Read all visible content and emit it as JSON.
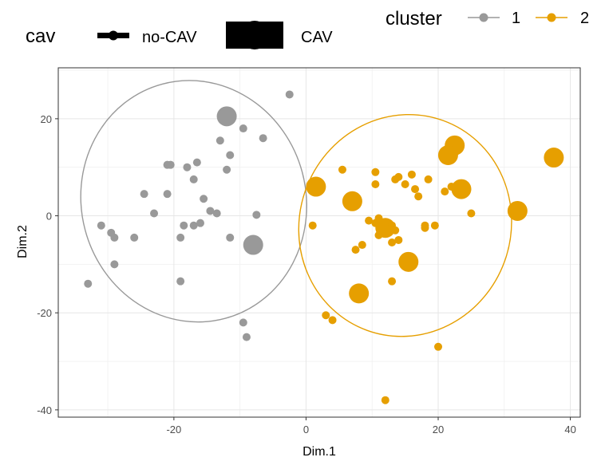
{
  "chart_data": {
    "type": "scatter",
    "title": "",
    "xlabel": "Dim.1",
    "ylabel": "Dim.2",
    "xlim": [
      -37.5,
      41.5
    ],
    "ylim": [
      -41.5,
      30.5
    ],
    "xticks": [
      -20,
      0,
      20,
      40
    ],
    "yticks": [
      -40,
      -20,
      0,
      20
    ],
    "grid": true,
    "legends": {
      "size": {
        "title": "cav",
        "entries": [
          "no-CAV",
          "CAV"
        ]
      },
      "color": {
        "title": "cluster",
        "entries": [
          "1",
          "2"
        ]
      }
    },
    "colors": {
      "1": "#999999",
      "2": "#E69F00"
    },
    "ellipses": [
      {
        "cluster": "1",
        "center": [
          -17,
          3
        ],
        "rx": 17,
        "ry": 25,
        "angle_deg": -15
      },
      {
        "cluster": "2",
        "center": [
          15,
          -2
        ],
        "rx": 16,
        "ry": 23,
        "angle_deg": 20
      }
    ],
    "series": [
      {
        "name": "1",
        "points": [
          {
            "x": -2.5,
            "y": 25,
            "cav": "no-CAV"
          },
          {
            "x": -12,
            "y": 20.5,
            "cav": "CAV"
          },
          {
            "x": -9.5,
            "y": 18,
            "cav": "no-CAV"
          },
          {
            "x": -6.5,
            "y": 16,
            "cav": "no-CAV"
          },
          {
            "x": -13,
            "y": 15.5,
            "cav": "no-CAV"
          },
          {
            "x": -11.5,
            "y": 12.5,
            "cav": "no-CAV"
          },
          {
            "x": -16.5,
            "y": 11,
            "cav": "no-CAV"
          },
          {
            "x": -21,
            "y": 10.5,
            "cav": "no-CAV"
          },
          {
            "x": -20.5,
            "y": 10.5,
            "cav": "no-CAV"
          },
          {
            "x": -18,
            "y": 10,
            "cav": "no-CAV"
          },
          {
            "x": -12,
            "y": 9.5,
            "cav": "no-CAV"
          },
          {
            "x": -17,
            "y": 7.5,
            "cav": "no-CAV"
          },
          {
            "x": -24.5,
            "y": 4.5,
            "cav": "no-CAV"
          },
          {
            "x": -21,
            "y": 4.5,
            "cav": "no-CAV"
          },
          {
            "x": -15.5,
            "y": 3.5,
            "cav": "no-CAV"
          },
          {
            "x": -23,
            "y": 0.5,
            "cav": "no-CAV"
          },
          {
            "x": -14.5,
            "y": 1,
            "cav": "no-CAV"
          },
          {
            "x": -13.5,
            "y": 0.5,
            "cav": "no-CAV"
          },
          {
            "x": -7.5,
            "y": 0.2,
            "cav": "no-CAV"
          },
          {
            "x": -17,
            "y": -2,
            "cav": "no-CAV"
          },
          {
            "x": -18.5,
            "y": -2,
            "cav": "no-CAV"
          },
          {
            "x": -16,
            "y": -1.5,
            "cav": "no-CAV"
          },
          {
            "x": -31,
            "y": -2,
            "cav": "no-CAV"
          },
          {
            "x": -29.5,
            "y": -3.5,
            "cav": "no-CAV"
          },
          {
            "x": -29,
            "y": -4.5,
            "cav": "no-CAV"
          },
          {
            "x": -26,
            "y": -4.5,
            "cav": "no-CAV"
          },
          {
            "x": -19,
            "y": -4.5,
            "cav": "no-CAV"
          },
          {
            "x": -11.5,
            "y": -4.5,
            "cav": "no-CAV"
          },
          {
            "x": -8,
            "y": -6,
            "cav": "CAV"
          },
          {
            "x": -29,
            "y": -10,
            "cav": "no-CAV"
          },
          {
            "x": -19,
            "y": -13.5,
            "cav": "no-CAV"
          },
          {
            "x": -33,
            "y": -14,
            "cav": "no-CAV"
          },
          {
            "x": -9.5,
            "y": -22,
            "cav": "no-CAV"
          },
          {
            "x": -9,
            "y": -25,
            "cav": "no-CAV"
          }
        ]
      },
      {
        "name": "2",
        "points": [
          {
            "x": 37.5,
            "y": 12,
            "cav": "CAV"
          },
          {
            "x": 22.5,
            "y": 14.5,
            "cav": "CAV"
          },
          {
            "x": 21.5,
            "y": 12.5,
            "cav": "CAV"
          },
          {
            "x": 1.5,
            "y": 6,
            "cav": "CAV"
          },
          {
            "x": 7,
            "y": 3,
            "cav": "CAV"
          },
          {
            "x": 23.5,
            "y": 5.5,
            "cav": "CAV"
          },
          {
            "x": 32,
            "y": 1,
            "cav": "CAV"
          },
          {
            "x": 12,
            "y": -2.5,
            "cav": "CAV"
          },
          {
            "x": 15.5,
            "y": -9.5,
            "cav": "CAV"
          },
          {
            "x": 8,
            "y": -16,
            "cav": "CAV"
          },
          {
            "x": 5.5,
            "y": 9.5,
            "cav": "no-CAV"
          },
          {
            "x": 10.5,
            "y": 9,
            "cav": "no-CAV"
          },
          {
            "x": 14,
            "y": 8,
            "cav": "no-CAV"
          },
          {
            "x": 16,
            "y": 8.5,
            "cav": "no-CAV"
          },
          {
            "x": 13.5,
            "y": 7.5,
            "cav": "no-CAV"
          },
          {
            "x": 18.5,
            "y": 7.5,
            "cav": "no-CAV"
          },
          {
            "x": 10.5,
            "y": 6.5,
            "cav": "no-CAV"
          },
          {
            "x": 15,
            "y": 6.5,
            "cav": "no-CAV"
          },
          {
            "x": 16.5,
            "y": 5.5,
            "cav": "no-CAV"
          },
          {
            "x": 21,
            "y": 5,
            "cav": "no-CAV"
          },
          {
            "x": 22,
            "y": 6,
            "cav": "no-CAV"
          },
          {
            "x": 17,
            "y": 4,
            "cav": "no-CAV"
          },
          {
            "x": 25,
            "y": 0.5,
            "cav": "no-CAV"
          },
          {
            "x": 9.5,
            "y": -1,
            "cav": "no-CAV"
          },
          {
            "x": 10.5,
            "y": -1.5,
            "cav": "no-CAV"
          },
          {
            "x": 11,
            "y": -0.5,
            "cav": "no-CAV"
          },
          {
            "x": 13,
            "y": -2,
            "cav": "no-CAV"
          },
          {
            "x": 18,
            "y": -2,
            "cav": "no-CAV"
          },
          {
            "x": 18,
            "y": -2.5,
            "cav": "no-CAV"
          },
          {
            "x": 19.5,
            "y": -2,
            "cav": "no-CAV"
          },
          {
            "x": 1,
            "y": -2,
            "cav": "no-CAV"
          },
          {
            "x": 13.5,
            "y": -3,
            "cav": "no-CAV"
          },
          {
            "x": 11,
            "y": -4,
            "cav": "no-CAV"
          },
          {
            "x": 14,
            "y": -5,
            "cav": "no-CAV"
          },
          {
            "x": 13,
            "y": -5.5,
            "cav": "no-CAV"
          },
          {
            "x": 8.5,
            "y": -6,
            "cav": "no-CAV"
          },
          {
            "x": 7.5,
            "y": -7,
            "cav": "no-CAV"
          },
          {
            "x": 13,
            "y": -13.5,
            "cav": "no-CAV"
          },
          {
            "x": 3,
            "y": -20.5,
            "cav": "no-CAV"
          },
          {
            "x": 4,
            "y": -21.5,
            "cav": "no-CAV"
          },
          {
            "x": 20,
            "y": -27,
            "cav": "no-CAV"
          },
          {
            "x": 12,
            "y": -38,
            "cav": "no-CAV"
          }
        ]
      }
    ]
  }
}
